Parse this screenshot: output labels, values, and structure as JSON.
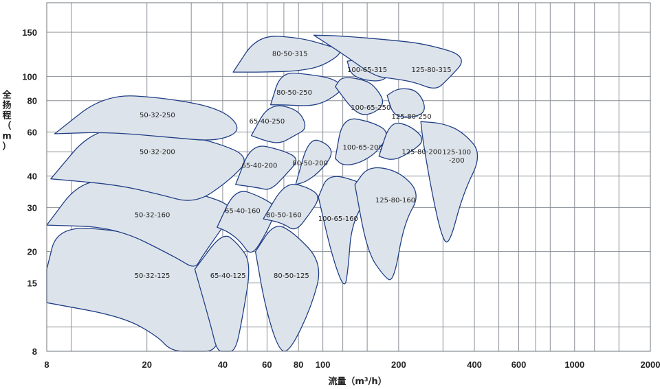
{
  "chart_data": {
    "type": "area",
    "title": "",
    "xlabel": "流量（m³/h）",
    "ylabel": "全扬程（m）",
    "x_scale": "log",
    "y_scale": "log",
    "xlim": [
      8,
      2000
    ],
    "ylim": [
      8,
      180
    ],
    "x_ticks": [
      8,
      20,
      40,
      60,
      80,
      100,
      200,
      400,
      600,
      1000,
      2000
    ],
    "y_ticks": [
      8,
      15,
      20,
      30,
      40,
      60,
      80,
      100,
      150
    ],
    "x_grid": [
      8,
      10,
      20,
      30,
      40,
      50,
      60,
      70,
      80,
      100,
      120,
      150,
      200,
      300,
      400,
      500,
      600,
      700,
      800,
      1000,
      1200,
      1500,
      2000
    ],
    "y_grid": [
      8,
      10,
      15,
      20,
      30,
      40,
      50,
      60,
      80,
      100,
      150
    ],
    "grid": true,
    "series": [
      {
        "name": "50-32-125",
        "label": "50-32-125",
        "label_at": [
          21,
          16
        ],
        "outline": [
          [
            8,
            17
          ],
          [
            8.8,
            25
          ],
          [
            15,
            24.5
          ],
          [
            27,
            21
          ],
          [
            35,
            16
          ],
          [
            40,
            11
          ],
          [
            38,
            8
          ],
          [
            31,
            8
          ],
          [
            25,
            8
          ],
          [
            22,
            9.2
          ],
          [
            16,
            11
          ],
          [
            8,
            12.5
          ]
        ]
      },
      {
        "name": "50-32-160",
        "label": "50-32-160",
        "label_at": [
          21,
          28
        ],
        "outline": [
          [
            8,
            25.5
          ],
          [
            11,
            39
          ],
          [
            18,
            38
          ],
          [
            33,
            34
          ],
          [
            45,
            30
          ],
          [
            40,
            25
          ],
          [
            33,
            19
          ],
          [
            31,
            17
          ],
          [
            26,
            19
          ],
          [
            15,
            25
          ],
          [
            8,
            25.5
          ]
        ]
      },
      {
        "name": "50-32-200",
        "label": "50-32-200",
        "label_at": [
          22,
          50
        ],
        "outline": [
          [
            8.3,
            39
          ],
          [
            12.4,
            63
          ],
          [
            22,
            61
          ],
          [
            37,
            55
          ],
          [
            52,
            47.5
          ],
          [
            42,
            38
          ],
          [
            31,
            31
          ],
          [
            22,
            34
          ],
          [
            15,
            37
          ],
          [
            8.3,
            39
          ]
        ]
      },
      {
        "name": "50-32-250",
        "label": "50-32-250",
        "label_at": [
          22,
          70
        ],
        "outline": [
          [
            8.6,
            59
          ],
          [
            13.6,
            85
          ],
          [
            24,
            82
          ],
          [
            40,
            74
          ],
          [
            48,
            61
          ],
          [
            38,
            55
          ],
          [
            25,
            57
          ],
          [
            14,
            60
          ],
          [
            8.6,
            59
          ]
        ]
      },
      {
        "name": "65-40-125",
        "label": "65-40-125",
        "label_at": [
          42,
          16
        ],
        "outline": [
          [
            31,
            17
          ],
          [
            40,
            24
          ],
          [
            46,
            21.5
          ],
          [
            52,
            18
          ],
          [
            48,
            11
          ],
          [
            45,
            8
          ],
          [
            41,
            8
          ],
          [
            38,
            8
          ],
          [
            36,
            10
          ],
          [
            31,
            17
          ]
        ]
      },
      {
        "name": "65-40-160",
        "label": "65-40-160",
        "label_at": [
          48,
          29
        ],
        "outline": [
          [
            38,
            25
          ],
          [
            45,
            36
          ],
          [
            57,
            33
          ],
          [
            66,
            30
          ],
          [
            60,
            24
          ],
          [
            52,
            19
          ],
          [
            47,
            22
          ],
          [
            42,
            24
          ],
          [
            38,
            25
          ]
        ]
      },
      {
        "name": "65-40-200",
        "label": "65-40-200",
        "label_at": [
          56,
          44
        ],
        "outline": [
          [
            45,
            37
          ],
          [
            52,
            54
          ],
          [
            68,
            51
          ],
          [
            81,
            47
          ],
          [
            72,
            41
          ],
          [
            62,
            35
          ],
          [
            55,
            36
          ],
          [
            45,
            37
          ]
        ]
      },
      {
        "name": "65-40-250",
        "label": "65-40-250",
        "label_at": [
          60,
          66
        ],
        "outline": [
          [
            52,
            58
          ],
          [
            61,
            78
          ],
          [
            80,
            74
          ],
          [
            87,
            62
          ],
          [
            77,
            58
          ],
          [
            68,
            54
          ],
          [
            60,
            55
          ],
          [
            52,
            58
          ]
        ]
      },
      {
        "name": "80-50-125",
        "label": "80-50-125",
        "label_at": [
          75,
          16
        ],
        "outline": [
          [
            54,
            20
          ],
          [
            64,
            26
          ],
          [
            76,
            24
          ],
          [
            100,
            18
          ],
          [
            90,
            12
          ],
          [
            74,
            8
          ],
          [
            67,
            8
          ],
          [
            59,
            12
          ],
          [
            54,
            20
          ]
        ]
      },
      {
        "name": "80-50-160",
        "label": "80-50-160",
        "label_at": [
          70,
          28
        ],
        "outline": [
          [
            58,
            27
          ],
          [
            71,
            38
          ],
          [
            88,
            36
          ],
          [
            98,
            33
          ],
          [
            88,
            28
          ],
          [
            78,
            24
          ],
          [
            69,
            26
          ],
          [
            58,
            27
          ]
        ]
      },
      {
        "name": "80-50-200",
        "label": "80-50-200",
        "label_at": [
          89,
          45
        ],
        "outline": [
          [
            78,
            37
          ],
          [
            88,
            57
          ],
          [
            104,
            54
          ],
          [
            110,
            49
          ],
          [
            98,
            42
          ],
          [
            86,
            38
          ],
          [
            78,
            37
          ]
        ]
      },
      {
        "name": "80-50-250",
        "label": "80-50-250",
        "label_at": [
          77,
          86
        ],
        "outline": [
          [
            62,
            77
          ],
          [
            68,
            104
          ],
          [
            88,
            102
          ],
          [
            110,
            98
          ],
          [
            122,
            90
          ],
          [
            105,
            80
          ],
          [
            90,
            76
          ],
          [
            70,
            77
          ],
          [
            62,
            77
          ]
        ]
      },
      {
        "name": "80-50-315",
        "label": "80-50-315",
        "label_at": [
          74,
          123
        ],
        "outline": [
          [
            44,
            104
          ],
          [
            55,
            146
          ],
          [
            80,
            143
          ],
          [
            104,
            133
          ],
          [
            122,
            126
          ],
          [
            100,
            110
          ],
          [
            80,
            105
          ],
          [
            60,
            104
          ],
          [
            44,
            104
          ]
        ]
      },
      {
        "name": "100-65-160",
        "label": "100-65-160",
        "label_at": [
          115,
          27
        ],
        "outline": [
          [
            96,
            33
          ],
          [
            105,
            41
          ],
          [
            140,
            38
          ],
          [
            156,
            35
          ],
          [
            130,
            26
          ],
          [
            126,
            17
          ],
          [
            122,
            14
          ],
          [
            109,
            19
          ],
          [
            96,
            33
          ]
        ]
      },
      {
        "name": "100-65-200",
        "label": "100-65-200",
        "label_at": [
          144,
          52
        ],
        "outline": [
          [
            112,
            47
          ],
          [
            120,
            69
          ],
          [
            155,
            66
          ],
          [
            185,
            60
          ],
          [
            165,
            50
          ],
          [
            140,
            45
          ],
          [
            120,
            44
          ],
          [
            112,
            47
          ]
        ]
      },
      {
        "name": "100-65-250",
        "label": "100-65-250",
        "label_at": [
          155,
          75
        ],
        "outline": [
          [
            112,
            91
          ],
          [
            119,
            100
          ],
          [
            145,
            97
          ],
          [
            160,
            92
          ],
          [
            178,
            78
          ],
          [
            155,
            70
          ],
          [
            135,
            71
          ],
          [
            112,
            91
          ]
        ]
      },
      {
        "name": "100-65-315",
        "label": "100-65-315",
        "label_at": [
          150,
          106
        ],
        "outline": [
          [
            125,
            115
          ],
          [
            150,
            118
          ],
          [
            172,
            115
          ],
          [
            187,
            110
          ],
          [
            180,
            98
          ],
          [
            160,
            95
          ],
          [
            130,
            100
          ],
          [
            125,
            115
          ]
        ]
      },
      {
        "name": "125-80-160",
        "label": "125-80-160",
        "label_at": [
          194,
          32
        ],
        "outline": [
          [
            134,
            37
          ],
          [
            152,
            44
          ],
          [
            200,
            42
          ],
          [
            245,
            34
          ],
          [
            210,
            26
          ],
          [
            191,
            15
          ],
          [
            174,
            16
          ],
          [
            150,
            20
          ],
          [
            134,
            37
          ]
        ]
      },
      {
        "name": "125-80-200",
        "label": "125-80-200",
        "label_at": [
          247,
          50
        ],
        "outline": [
          [
            167,
            48
          ],
          [
            185,
            66
          ],
          [
            220,
            64
          ],
          [
            256,
            56
          ],
          [
            225,
            50
          ],
          [
            190,
            46
          ],
          [
            167,
            48
          ]
        ]
      },
      {
        "name": "125-80-250",
        "label": "125-80-250",
        "label_at": [
          225,
          69
        ],
        "outline": [
          [
            180,
            84
          ],
          [
            200,
            90
          ],
          [
            240,
            88
          ],
          [
            260,
            72
          ],
          [
            220,
            68
          ],
          [
            190,
            70
          ],
          [
            180,
            84
          ]
        ]
      },
      {
        "name": "125-80-315",
        "label": "125-80-315",
        "label_at": [
          270,
          106
        ],
        "outline": [
          [
            92,
            146
          ],
          [
            120,
            145
          ],
          [
            180,
            140
          ],
          [
            255,
            135
          ],
          [
            380,
            120
          ],
          [
            310,
            96
          ],
          [
            280,
            88
          ],
          [
            230,
            95
          ],
          [
            190,
            98
          ],
          [
            160,
            100
          ],
          [
            120,
            123
          ],
          [
            92,
            146
          ]
        ]
      },
      {
        "name": "125-100-200",
        "label": "125-100\n-200",
        "label_at": [
          340,
          48
        ],
        "outline": [
          [
            245,
            66
          ],
          [
            300,
            65
          ],
          [
            360,
            60
          ],
          [
            430,
            49
          ],
          [
            360,
            34
          ],
          [
            317,
            21
          ],
          [
            296,
            23
          ],
          [
            270,
            35
          ],
          [
            250,
            55
          ],
          [
            245,
            66
          ]
        ]
      }
    ]
  }
}
